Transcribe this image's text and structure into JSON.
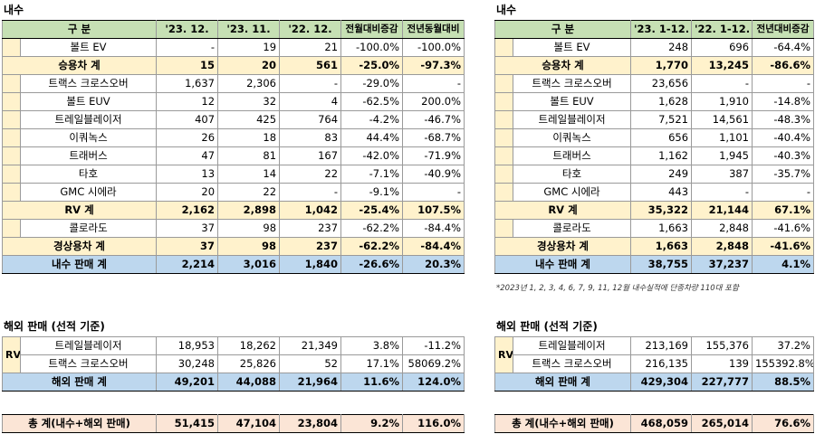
{
  "domestic_left": {
    "title": "내수",
    "headers": [
      "구  분",
      "'23. 12.",
      "'23. 11.",
      "'22. 12.",
      "전월대비증감",
      "전년동월대비"
    ],
    "rows": [
      {
        "kind": "item",
        "label": "볼트 EV",
        "values": [
          "-",
          "19",
          "21",
          "-100.0%",
          "-100.0%"
        ]
      },
      {
        "kind": "sub",
        "label": "승용차 계",
        "values": [
          "15",
          "20",
          "561",
          "-25.0%",
          "-97.3%"
        ]
      },
      {
        "kind": "item",
        "label": "트랙스 크로스오버",
        "values": [
          "1,637",
          "2,306",
          "-",
          "-29.0%",
          "-"
        ]
      },
      {
        "kind": "item",
        "label": "볼트 EUV",
        "values": [
          "12",
          "32",
          "4",
          "-62.5%",
          "200.0%"
        ]
      },
      {
        "kind": "item",
        "label": "트레일블레이저",
        "values": [
          "407",
          "425",
          "764",
          "-4.2%",
          "-46.7%"
        ]
      },
      {
        "kind": "item",
        "label": "이쿼녹스",
        "values": [
          "26",
          "18",
          "83",
          "44.4%",
          "-68.7%"
        ]
      },
      {
        "kind": "item",
        "label": "트래버스",
        "values": [
          "47",
          "81",
          "167",
          "-42.0%",
          "-71.9%"
        ]
      },
      {
        "kind": "item",
        "label": "타호",
        "values": [
          "13",
          "14",
          "22",
          "-7.1%",
          "-40.9%"
        ]
      },
      {
        "kind": "item",
        "label": "GMC 시에라",
        "values": [
          "20",
          "22",
          "-",
          "-9.1%",
          "-"
        ]
      },
      {
        "kind": "sub",
        "label": "RV 계",
        "values": [
          "2,162",
          "2,898",
          "1,042",
          "-25.4%",
          "107.5%"
        ]
      },
      {
        "kind": "item",
        "label": "콜로라도",
        "values": [
          "37",
          "98",
          "237",
          "-62.2%",
          "-84.4%"
        ]
      },
      {
        "kind": "sub",
        "label": "경상용차 계",
        "values": [
          "37",
          "98",
          "237",
          "-62.2%",
          "-84.4%"
        ]
      },
      {
        "kind": "tot",
        "label": "내수 판매 계",
        "values": [
          "2,214",
          "3,016",
          "1,840",
          "-26.6%",
          "20.3%"
        ]
      }
    ]
  },
  "domestic_right": {
    "title": "내수",
    "headers": [
      "구  분",
      "'23. 1-12.",
      "'22. 1-12.",
      "전년대비증감"
    ],
    "rows": [
      {
        "kind": "item",
        "label": "볼트 EV",
        "values": [
          "248",
          "696",
          "-64.4%"
        ]
      },
      {
        "kind": "sub",
        "label": "승용차 계",
        "values": [
          "1,770",
          "13,245",
          "-86.6%"
        ]
      },
      {
        "kind": "item",
        "label": "트랙스 크로스오버",
        "values": [
          "23,656",
          "-",
          "-"
        ]
      },
      {
        "kind": "item",
        "label": "볼트 EUV",
        "values": [
          "1,628",
          "1,910",
          "-14.8%"
        ]
      },
      {
        "kind": "item",
        "label": "트레일블레이저",
        "values": [
          "7,521",
          "14,561",
          "-48.3%"
        ]
      },
      {
        "kind": "item",
        "label": "이쿼녹스",
        "values": [
          "656",
          "1,101",
          "-40.4%"
        ]
      },
      {
        "kind": "item",
        "label": "트래버스",
        "values": [
          "1,162",
          "1,945",
          "-40.3%"
        ]
      },
      {
        "kind": "item",
        "label": "타호",
        "values": [
          "249",
          "387",
          "-35.7%"
        ]
      },
      {
        "kind": "item",
        "label": "GMC 시에라",
        "values": [
          "443",
          "-",
          "-"
        ]
      },
      {
        "kind": "sub",
        "label": "RV 계",
        "values": [
          "35,322",
          "21,144",
          "67.1%"
        ]
      },
      {
        "kind": "item",
        "label": "콜로라도",
        "values": [
          "1,663",
          "2,848",
          "-41.6%"
        ]
      },
      {
        "kind": "sub",
        "label": "경상용차 계",
        "values": [
          "1,663",
          "2,848",
          "-41.6%"
        ]
      },
      {
        "kind": "tot",
        "label": "내수 판매 계",
        "values": [
          "38,755",
          "37,237",
          "4.1%"
        ]
      }
    ],
    "note": "*2023년 1, 2, 3, 4, 6, 7, 9, 11, 12월 내수실적에 단종차량 110대 포함"
  },
  "export_left": {
    "title": "해외 판매 (선적 기준)",
    "group": "RV",
    "rows": [
      {
        "label": "트레일블레이저",
        "values": [
          "18,953",
          "18,262",
          "21,349",
          "3.8%",
          "-11.2%"
        ]
      },
      {
        "label": "트랙스 크로스오버",
        "values": [
          "30,248",
          "25,826",
          "52",
          "17.1%",
          "58069.2%"
        ]
      }
    ],
    "total": {
      "label": "해외 판매 계",
      "values": [
        "49,201",
        "44,088",
        "21,964",
        "11.6%",
        "124.0%"
      ]
    },
    "grand": {
      "label": "총  계(내수+해외 판매)",
      "values": [
        "51,415",
        "47,104",
        "23,804",
        "9.2%",
        "116.0%"
      ]
    }
  },
  "export_right": {
    "title": "해외 판매 (선적 기준)",
    "group": "RV",
    "rows": [
      {
        "label": "트레일블레이저",
        "values": [
          "213,169",
          "155,376",
          "37.2%"
        ]
      },
      {
        "label": "트랙스 크로스오버",
        "values": [
          "216,135",
          "139",
          "155392.8%"
        ]
      }
    ],
    "total": {
      "label": "해외 판매 계",
      "values": [
        "429,304",
        "227,777",
        "88.5%"
      ]
    },
    "grand": {
      "label": "총  계(내수+해외 판매)",
      "values": [
        "468,059",
        "265,014",
        "76.6%"
      ]
    }
  }
}
